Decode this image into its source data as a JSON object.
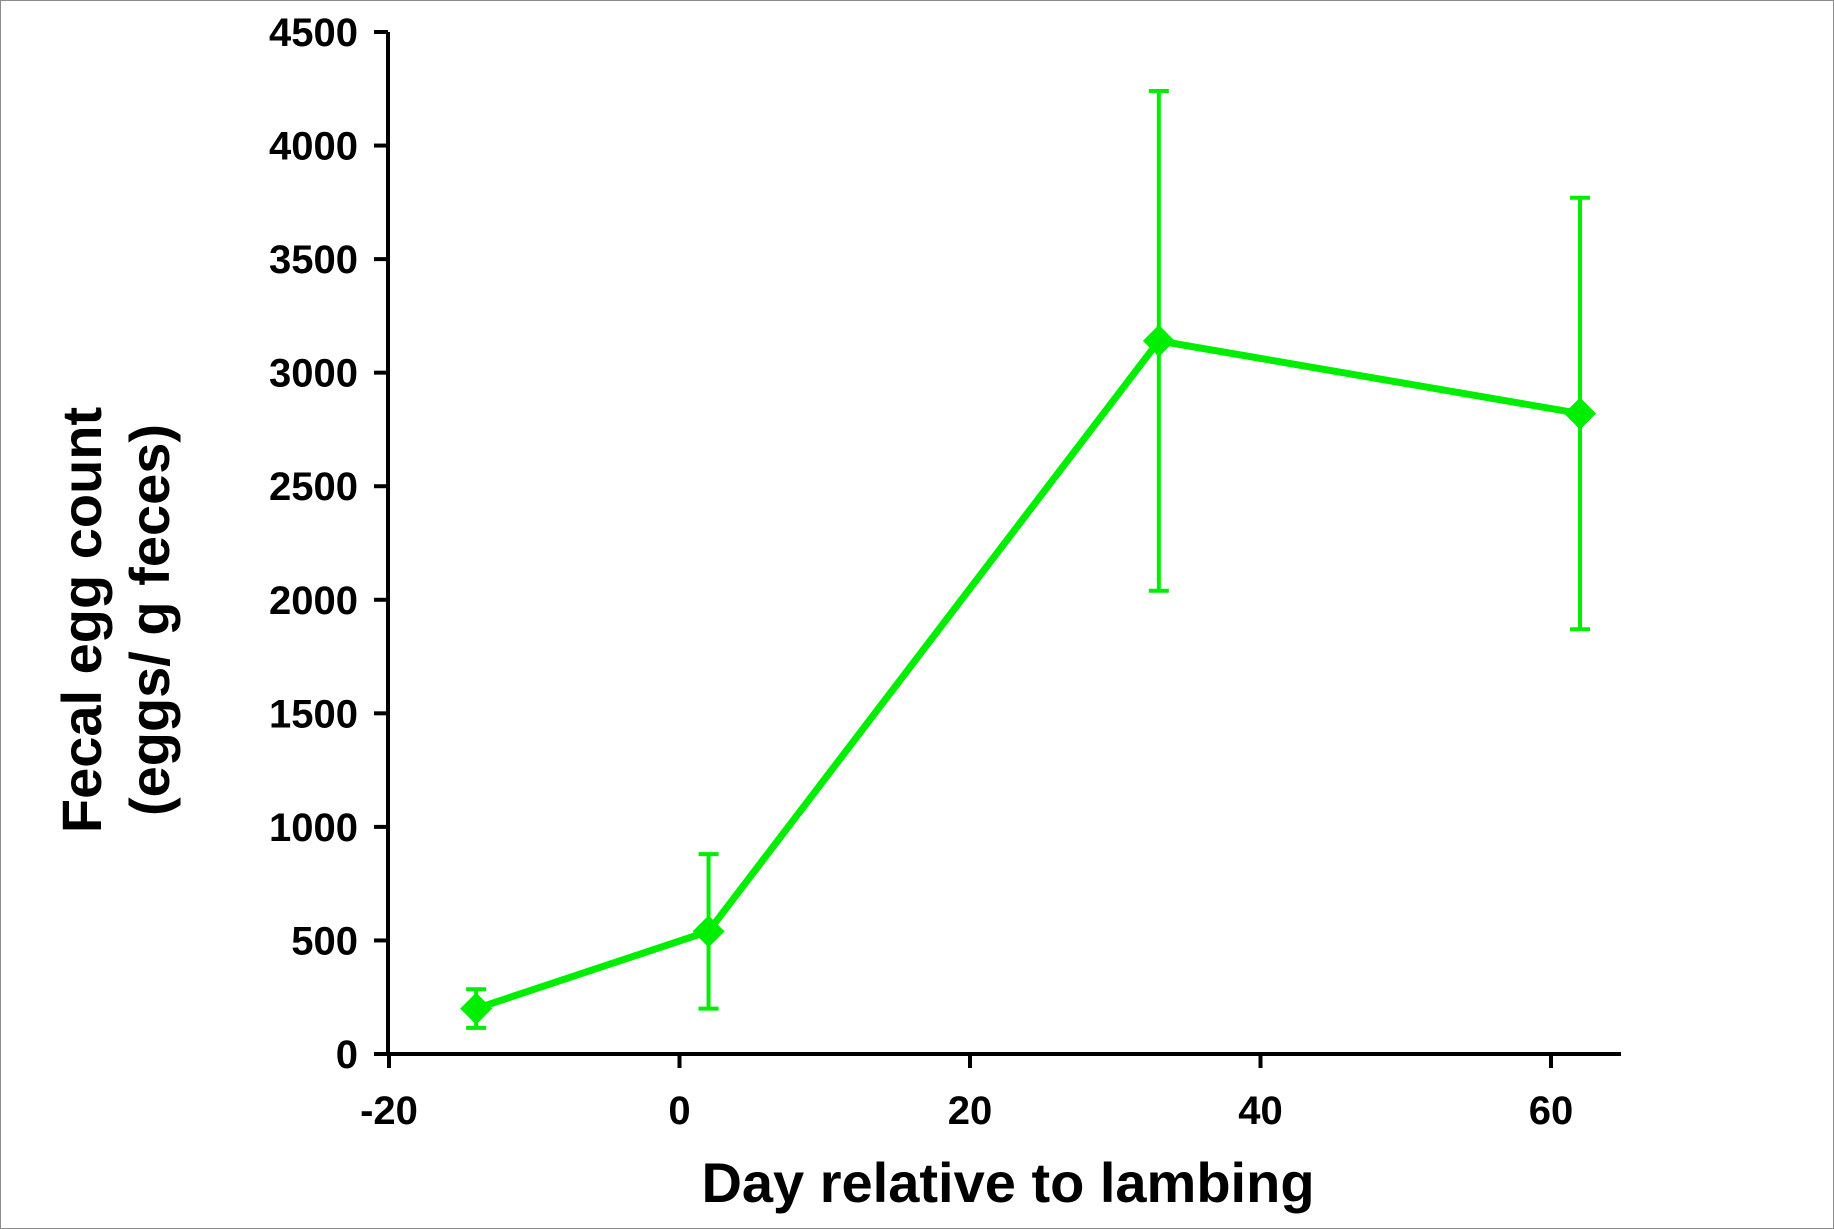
{
  "chart_data": {
    "type": "line",
    "title": "",
    "xlabel": "Day relative to lambing",
    "ylabel_lines": [
      "Fecal egg count",
      "(eggs/ g feces)"
    ],
    "xlim": [
      -20,
      65
    ],
    "ylim": [
      0,
      4500
    ],
    "xticks": [
      -20,
      0,
      20,
      40,
      60
    ],
    "yticks": [
      0,
      500,
      1000,
      1500,
      2000,
      2500,
      3000,
      3500,
      4000,
      4500
    ],
    "grid": false,
    "legend": "none",
    "series": [
      {
        "color": "#00ee00",
        "marker": "diamond",
        "points": [
          {
            "x": -14,
            "y": 200,
            "err_low": 115,
            "err_high": 285
          },
          {
            "x": 2,
            "y": 540,
            "err_low": 200,
            "err_high": 880
          },
          {
            "x": 33,
            "y": 3140,
            "err_low": 2040,
            "err_high": 4240
          },
          {
            "x": 62,
            "y": 2820,
            "err_low": 1870,
            "err_high": 3770
          }
        ]
      }
    ]
  }
}
